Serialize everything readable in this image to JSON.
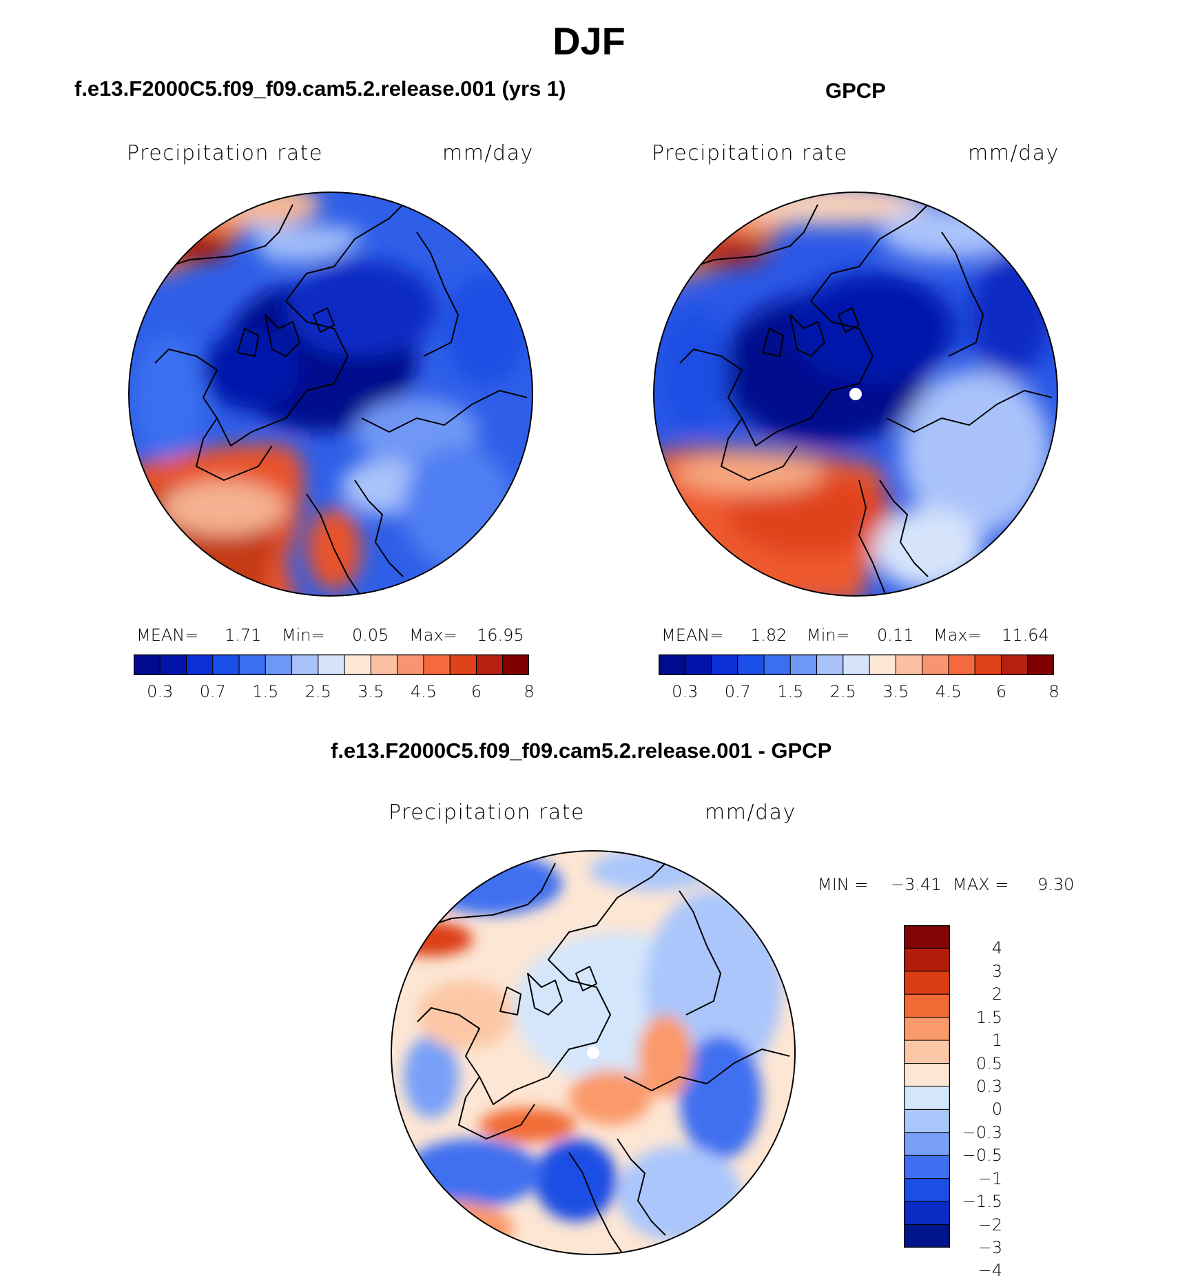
{
  "figure_title": "DJF",
  "colors": {
    "abs_scale": [
      "#000a8c",
      "#0014aa",
      "#0a2fd6",
      "#1a4fe8",
      "#3a6ff0",
      "#6f97f5",
      "#a9c2fa",
      "#d6e4fb",
      "#fde7d6",
      "#fbc0a3",
      "#f99470",
      "#f46a3e",
      "#e0421c",
      "#b52010",
      "#800000"
    ],
    "diff_scale": [
      "#00158a",
      "#0a2bc4",
      "#1a4ee4",
      "#3f6ff0",
      "#78a0f7",
      "#aac6fb",
      "#d4e6fb",
      "#fde6d4",
      "#fcc7a6",
      "#fa9a6a",
      "#f26a36",
      "#dc3e14",
      "#b21d0a",
      "#820505"
    ]
  },
  "panels": {
    "model": {
      "title": "f.e13.F2000C5.f09_f09.cam5.2.release.001 (yrs 1)",
      "variable": "Precipitation  rate",
      "units": "mm/day",
      "stats": {
        "mean_label": "MEAN=",
        "mean": "1.71",
        "min_label": "Min=",
        "min": "0.05",
        "max_label": "Max=",
        "max": "16.95"
      },
      "field": {
        "mean": 1.71,
        "min": 0.05,
        "max": 16.95
      }
    },
    "obs": {
      "title": "GPCP",
      "variable": "Precipitation  rate",
      "units": "mm/day",
      "stats": {
        "mean_label": "MEAN=",
        "mean": "1.82",
        "min_label": "Min=",
        "min": "0.11",
        "max_label": "Max=",
        "max": "11.64"
      },
      "field": {
        "mean": 1.82,
        "min": 0.11,
        "max": 11.64
      }
    },
    "diff": {
      "title": "f.e13.F2000C5.f09_f09.cam5.2.release.001 - GPCP",
      "variable": "Precipitation  rate",
      "units": "mm/day",
      "stats": {
        "min_label": "MIN =",
        "min": "−3.41",
        "max_label": "MAX =",
        "max": "9.30"
      },
      "field": {
        "min": -3.41,
        "max": 9.3
      }
    }
  },
  "abs_colorbar": {
    "levels": [
      0.2,
      0.3,
      0.5,
      0.7,
      1,
      1.5,
      2,
      2.5,
      3,
      3.5,
      4,
      4.5,
      5,
      6,
      7,
      8
    ],
    "tick_labels": [
      "0.3",
      "0.7",
      "1.5",
      "2.5",
      "3.5",
      "4.5",
      "6",
      "8"
    ]
  },
  "diff_colorbar": {
    "tick_labels": [
      "4",
      "3",
      "2",
      "1.5",
      "1",
      "0.5",
      "0.3",
      "0",
      "−0.3",
      "−0.5",
      "−1",
      "−1.5",
      "−2",
      "−3",
      "−4"
    ]
  }
}
